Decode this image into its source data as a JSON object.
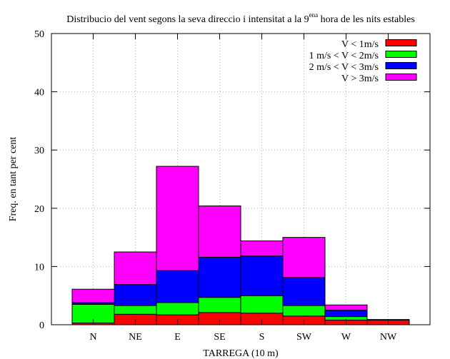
{
  "chart_data": {
    "type": "bar",
    "stacked": true,
    "title": {
      "prefix": "Distribucio del vent segons la seva direccio i intensitat a la 9",
      "superscript": "ena",
      "suffix": " hora de les nits estables"
    },
    "xlabel": "TARREGA (10 m)",
    "ylabel": "Freq. en tant per cent",
    "ylim": [
      0,
      50
    ],
    "yticks": [
      "0",
      "10",
      "20",
      "30",
      "40",
      "50"
    ],
    "grid": true,
    "legend_position": "top-right",
    "categories": [
      "N",
      "NE",
      "E",
      "SE",
      "S",
      "SW",
      "W",
      "NW"
    ],
    "series": [
      {
        "name": "V < 1m/s",
        "color": "#ff0000",
        "values": [
          0.3,
          1.8,
          1.7,
          2.1,
          2.0,
          1.5,
          0.8,
          0.8
        ]
      },
      {
        "name": "1 m/s < V < 2m/s",
        "color": "#00ff00",
        "values": [
          3.2,
          1.5,
          2.1,
          2.6,
          3.0,
          1.8,
          0.6,
          0.1
        ]
      },
      {
        "name": "2 m/s < V < 3m/s",
        "color": "#0000ff",
        "values": [
          0.3,
          3.6,
          5.5,
          6.9,
          6.8,
          4.8,
          1.1,
          0.0
        ]
      },
      {
        "name": "V > 3m/s",
        "color": "#ff00ff",
        "values": [
          2.3,
          5.6,
          17.9,
          8.8,
          2.6,
          6.9,
          0.9,
          0.0
        ]
      }
    ]
  }
}
